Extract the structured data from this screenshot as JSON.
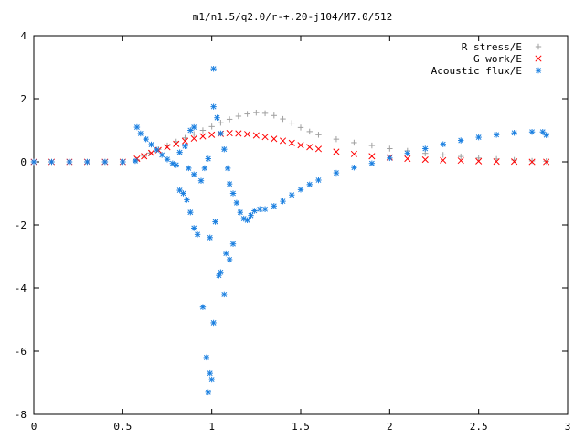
{
  "chart_data": {
    "type": "scatter",
    "title": "m1/n1.5/q2.0/r-+.20-j104/M7.0/512",
    "xlim": [
      0,
      3
    ],
    "ylim": [
      -8,
      4
    ],
    "xticks": [
      "0",
      "0.5",
      "1",
      "1.5",
      "2",
      "2.5",
      "3"
    ],
    "yticks": [
      "-8",
      "-6",
      "-4",
      "-2",
      "0",
      "2",
      "4"
    ],
    "grid": false,
    "legend_position": "top-right",
    "series": [
      {
        "name": "R stress/E",
        "marker": "+",
        "color": "#a0a0a0",
        "points": [
          [
            0.0,
            0.0
          ],
          [
            0.1,
            0.0
          ],
          [
            0.2,
            0.0
          ],
          [
            0.3,
            0.0
          ],
          [
            0.4,
            0.0
          ],
          [
            0.5,
            0.0
          ],
          [
            0.58,
            0.06
          ],
          [
            0.62,
            0.18
          ],
          [
            0.65,
            0.28
          ],
          [
            0.7,
            0.4
          ],
          [
            0.75,
            0.52
          ],
          [
            0.8,
            0.64
          ],
          [
            0.85,
            0.76
          ],
          [
            0.9,
            0.88
          ],
          [
            0.95,
            1.0
          ],
          [
            1.0,
            1.12
          ],
          [
            1.05,
            1.24
          ],
          [
            1.1,
            1.35
          ],
          [
            1.15,
            1.45
          ],
          [
            1.2,
            1.52
          ],
          [
            1.25,
            1.56
          ],
          [
            1.3,
            1.54
          ],
          [
            1.35,
            1.47
          ],
          [
            1.4,
            1.36
          ],
          [
            1.45,
            1.23
          ],
          [
            1.5,
            1.09
          ],
          [
            1.55,
            0.96
          ],
          [
            1.6,
            0.86
          ],
          [
            1.7,
            0.72
          ],
          [
            1.8,
            0.61
          ],
          [
            1.9,
            0.52
          ],
          [
            2.0,
            0.42
          ],
          [
            2.1,
            0.35
          ],
          [
            2.2,
            0.27
          ],
          [
            2.3,
            0.22
          ],
          [
            2.4,
            0.17
          ],
          [
            2.5,
            0.12
          ],
          [
            2.6,
            0.09
          ],
          [
            2.7,
            0.06
          ],
          [
            2.8,
            0.03
          ],
          [
            2.88,
            0.02
          ]
        ]
      },
      {
        "name": "G work/E",
        "marker": "x",
        "color": "#ff0000",
        "points": [
          [
            0.0,
            0.0
          ],
          [
            0.1,
            0.0
          ],
          [
            0.2,
            0.0
          ],
          [
            0.3,
            0.0
          ],
          [
            0.4,
            0.0
          ],
          [
            0.5,
            0.0
          ],
          [
            0.58,
            0.1
          ],
          [
            0.62,
            0.18
          ],
          [
            0.66,
            0.28
          ],
          [
            0.7,
            0.37
          ],
          [
            0.75,
            0.47
          ],
          [
            0.8,
            0.57
          ],
          [
            0.85,
            0.66
          ],
          [
            0.9,
            0.74
          ],
          [
            0.95,
            0.81
          ],
          [
            1.0,
            0.86
          ],
          [
            1.05,
            0.89
          ],
          [
            1.1,
            0.91
          ],
          [
            1.15,
            0.9
          ],
          [
            1.2,
            0.88
          ],
          [
            1.25,
            0.84
          ],
          [
            1.3,
            0.79
          ],
          [
            1.35,
            0.73
          ],
          [
            1.4,
            0.67
          ],
          [
            1.45,
            0.6
          ],
          [
            1.5,
            0.53
          ],
          [
            1.55,
            0.47
          ],
          [
            1.6,
            0.41
          ],
          [
            1.7,
            0.32
          ],
          [
            1.8,
            0.25
          ],
          [
            1.9,
            0.18
          ],
          [
            2.0,
            0.14
          ],
          [
            2.1,
            0.1
          ],
          [
            2.2,
            0.07
          ],
          [
            2.3,
            0.05
          ],
          [
            2.4,
            0.04
          ],
          [
            2.5,
            0.02
          ],
          [
            2.6,
            0.01
          ],
          [
            2.7,
            0.01
          ],
          [
            2.8,
            0.0
          ],
          [
            2.88,
            0.0
          ]
        ]
      },
      {
        "name": "Acoustic flux/E",
        "marker": "*",
        "color": "#1a7fe0",
        "points": [
          [
            0.0,
            0.0
          ],
          [
            0.1,
            0.0
          ],
          [
            0.2,
            0.0
          ],
          [
            0.3,
            0.0
          ],
          [
            0.4,
            0.0
          ],
          [
            0.5,
            0.0
          ],
          [
            0.57,
            0.03
          ],
          [
            0.58,
            1.1
          ],
          [
            0.6,
            0.9
          ],
          [
            0.63,
            0.72
          ],
          [
            0.66,
            0.55
          ],
          [
            0.69,
            0.38
          ],
          [
            0.72,
            0.22
          ],
          [
            0.75,
            0.08
          ],
          [
            0.78,
            -0.05
          ],
          [
            0.8,
            -0.1
          ],
          [
            0.82,
            0.3
          ],
          [
            0.85,
            0.5
          ],
          [
            0.88,
            1.0
          ],
          [
            0.9,
            1.1
          ],
          [
            0.84,
            -1.0
          ],
          [
            0.86,
            -1.2
          ],
          [
            0.88,
            -1.6
          ],
          [
            0.9,
            -2.1
          ],
          [
            0.92,
            -2.3
          ],
          [
            0.94,
            -0.6
          ],
          [
            0.96,
            -0.2
          ],
          [
            0.98,
            0.1
          ],
          [
            0.9,
            -0.4
          ],
          [
            0.87,
            -0.2
          ],
          [
            0.82,
            -0.9
          ],
          [
            0.95,
            -4.6
          ],
          [
            0.97,
            -6.2
          ],
          [
            0.98,
            -7.3
          ],
          [
            0.99,
            -6.7
          ],
          [
            1.0,
            -6.9
          ],
          [
            1.01,
            -5.1
          ],
          [
            0.99,
            -2.4
          ],
          [
            1.02,
            -1.9
          ],
          [
            1.04,
            -3.6
          ],
          [
            1.05,
            -3.5
          ],
          [
            1.07,
            -4.2
          ],
          [
            1.08,
            -2.9
          ],
          [
            1.1,
            -3.1
          ],
          [
            1.12,
            -2.6
          ],
          [
            1.01,
            2.95
          ],
          [
            1.01,
            1.75
          ],
          [
            1.03,
            1.4
          ],
          [
            1.05,
            0.9
          ],
          [
            1.07,
            0.4
          ],
          [
            1.09,
            -0.2
          ],
          [
            1.1,
            -0.7
          ],
          [
            1.12,
            -1.0
          ],
          [
            1.14,
            -1.3
          ],
          [
            1.16,
            -1.6
          ],
          [
            1.18,
            -1.8
          ],
          [
            1.2,
            -1.85
          ],
          [
            1.22,
            -1.7
          ],
          [
            1.24,
            -1.55
          ],
          [
            1.27,
            -1.5
          ],
          [
            1.3,
            -1.5
          ],
          [
            1.35,
            -1.4
          ],
          [
            1.4,
            -1.25
          ],
          [
            1.45,
            -1.05
          ],
          [
            1.5,
            -0.88
          ],
          [
            1.55,
            -0.72
          ],
          [
            1.6,
            -0.58
          ],
          [
            1.7,
            -0.35
          ],
          [
            1.8,
            -0.18
          ],
          [
            1.9,
            -0.05
          ],
          [
            2.0,
            0.12
          ],
          [
            2.1,
            0.27
          ],
          [
            2.2,
            0.42
          ],
          [
            2.3,
            0.56
          ],
          [
            2.4,
            0.68
          ],
          [
            2.5,
            0.78
          ],
          [
            2.6,
            0.86
          ],
          [
            2.7,
            0.92
          ],
          [
            2.8,
            0.95
          ],
          [
            2.86,
            0.95
          ],
          [
            2.88,
            0.85
          ]
        ]
      }
    ]
  }
}
